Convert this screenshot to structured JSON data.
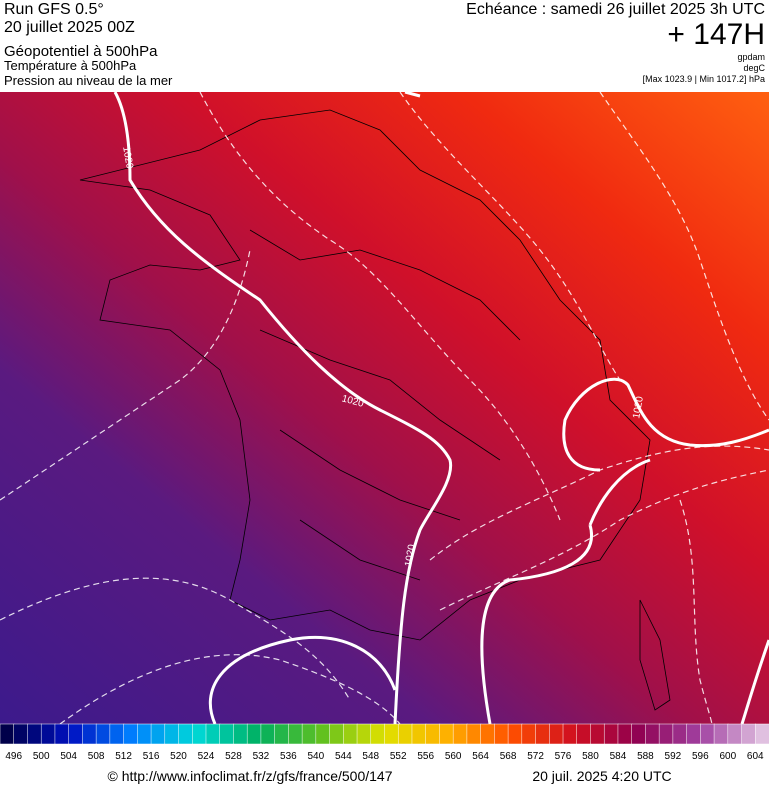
{
  "header": {
    "run": "Run GFS 0.5°",
    "date": "20 juillet 2025 00Z",
    "field_1": "Géopotentiel à 500hPa",
    "field_2": "Température à 500hPa",
    "field_3": "Pression au niveau de la mer",
    "forecast": "Echéance : samedi 26 juillet 2025 3h UTC",
    "offset": "+ 147H",
    "unit_1": "gpdam",
    "unit_2": "degC",
    "unit_3": "[Max 1023.9 | Min 1017.2] hPa"
  },
  "map": {
    "isobar_labels": [
      "1020",
      "1020",
      "1020",
      "1020"
    ]
  },
  "colorbar": {
    "ticks": [
      496,
      500,
      504,
      508,
      512,
      516,
      520,
      524,
      528,
      532,
      536,
      540,
      544,
      548,
      552,
      556,
      560,
      564,
      568,
      572,
      576,
      580,
      584,
      588,
      592,
      596,
      600,
      604
    ],
    "color_stops": [
      "#00004a",
      "#0010c0",
      "#0080ff",
      "#00d8d8",
      "#00b060",
      "#60c020",
      "#e0e000",
      "#ffb000",
      "#ff5000",
      "#d01020",
      "#900050",
      "#a040a0",
      "#e0c0e0"
    ]
  },
  "footer": {
    "source": "© http://www.infoclimat.fr/z/gfs/france/500/147",
    "timestamp": "20 juil. 2025  4:20 UTC"
  }
}
